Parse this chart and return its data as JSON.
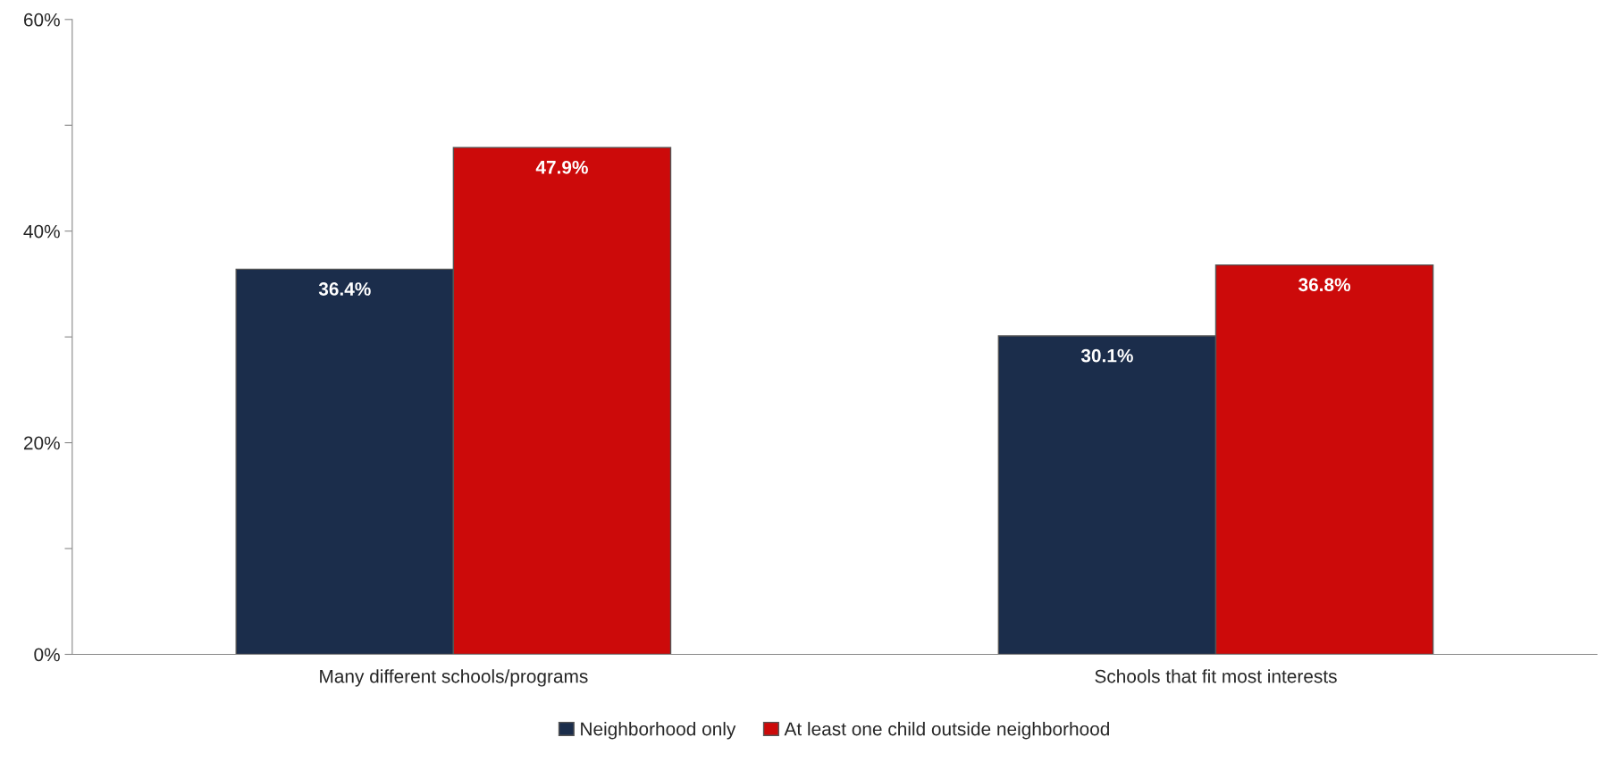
{
  "chart_data": {
    "type": "bar",
    "categories": [
      "Many different schools/programs",
      "Schools that fit most interests"
    ],
    "series": [
      {
        "name": "Neighborhood only",
        "color": "#1b2d4b",
        "values": [
          36.4,
          30.1
        ],
        "value_labels": [
          "36.4%",
          "30.1%"
        ]
      },
      {
        "name": "At least one child outside neighborhood",
        "color": "#cc0a0a",
        "values": [
          47.9,
          36.8
        ],
        "value_labels": [
          "47.9%",
          "36.8%"
        ]
      }
    ],
    "ylim": [
      0,
      60
    ],
    "yticks": [
      {
        "value": 0,
        "label": "0%"
      },
      {
        "value": 10,
        "label": null
      },
      {
        "value": 20,
        "label": "20%"
      },
      {
        "value": 30,
        "label": null
      },
      {
        "value": 40,
        "label": "40%"
      },
      {
        "value": 50,
        "label": null
      },
      {
        "value": 60,
        "label": "60%"
      }
    ],
    "grid": false,
    "legend": "bottom"
  }
}
